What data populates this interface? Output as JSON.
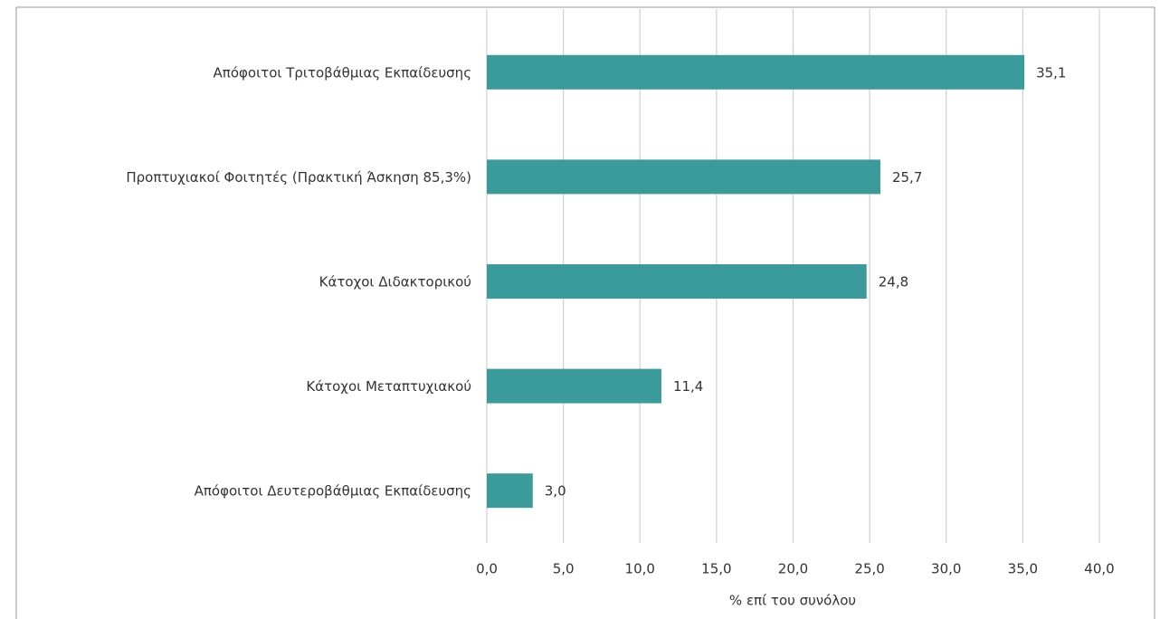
{
  "chart_data": {
    "type": "bar",
    "orientation": "horizontal",
    "xlabel": "% επί του συνόλου",
    "categories": [
      "Απόφοιτοι Τριτοβάθμιας Εκπαίδευσης",
      "Προπτυχιακοί Φοιτητές (Πρακτική Άσκηση 85,3%)",
      "Κάτοχοι Διδακτορικού",
      "Κάτοχοι Μεταπτυχιακού",
      "Απόφοιτοι Δευτεροβάθμιας Εκπαίδευσης"
    ],
    "values": [
      35.1,
      25.7,
      24.8,
      11.4,
      3.0
    ],
    "value_labels": [
      "35,1",
      "25,7",
      "24,8",
      "11,4",
      "3,0"
    ],
    "color": "#3b9a9a",
    "xlim": [
      0,
      40
    ],
    "xticks": [
      {
        "value": 0,
        "label": "0,0"
      },
      {
        "value": 5,
        "label": "5,0"
      },
      {
        "value": 10,
        "label": "10,0"
      },
      {
        "value": 15,
        "label": "15,0"
      },
      {
        "value": 20,
        "label": "20,0"
      },
      {
        "value": 25,
        "label": "25,0"
      },
      {
        "value": 30,
        "label": "30,0"
      },
      {
        "value": 35,
        "label": "35,0"
      },
      {
        "value": 40,
        "label": "40,0"
      }
    ],
    "grid": true
  }
}
